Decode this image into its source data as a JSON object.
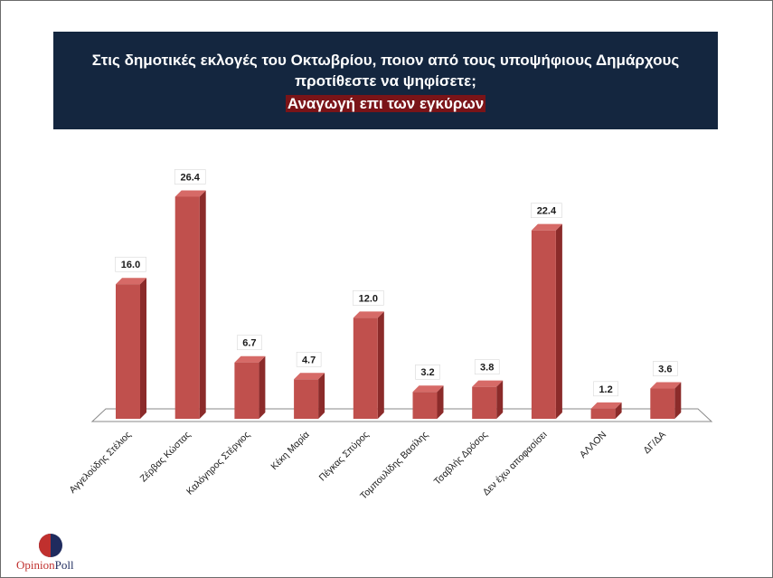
{
  "title": {
    "line1": "Στις δημοτικές εκλογές του Οκτωβρίου, ποιον από τους υποψήφιους Δημάρχους",
    "line2": "προτίθεστε να ψηφίσετε;",
    "subtitle": "Αναγωγή επι των εγκύρων"
  },
  "logo": {
    "part1": "Opinion",
    "part2": "Poll"
  },
  "colors": {
    "bar_front": "#c0504d",
    "bar_side": "#8b2b2a",
    "bar_top": "#d66a67",
    "title_bg": "#14263f",
    "subtitle_bg": "#7a1418"
  },
  "chart_data": {
    "type": "bar",
    "categories": [
      "Αγγελούδης Στέλιος",
      "Ζέρβας Κώστας",
      "Καλόγηρος Στέργιος",
      "Κέκη Μαρία",
      "Πέγκας Σπύρος",
      "Τομπουλίδης Βασίλης",
      "Τσαβλής Δρόσος",
      "Δεν έχω αποφασίσει",
      "ΑΛΛΟΝ",
      "ΔΓ/ΔΑ"
    ],
    "values": [
      16.0,
      26.4,
      6.7,
      4.7,
      12.0,
      3.2,
      3.8,
      22.4,
      1.2,
      3.6
    ],
    "value_labels": [
      "16.0",
      "26.4",
      "6.7",
      "4.7",
      "12.0",
      "3.2",
      "3.8",
      "22.4",
      "1.2",
      "3.6"
    ],
    "ylim": [
      0,
      28
    ],
    "grid": false,
    "legend": "none"
  }
}
